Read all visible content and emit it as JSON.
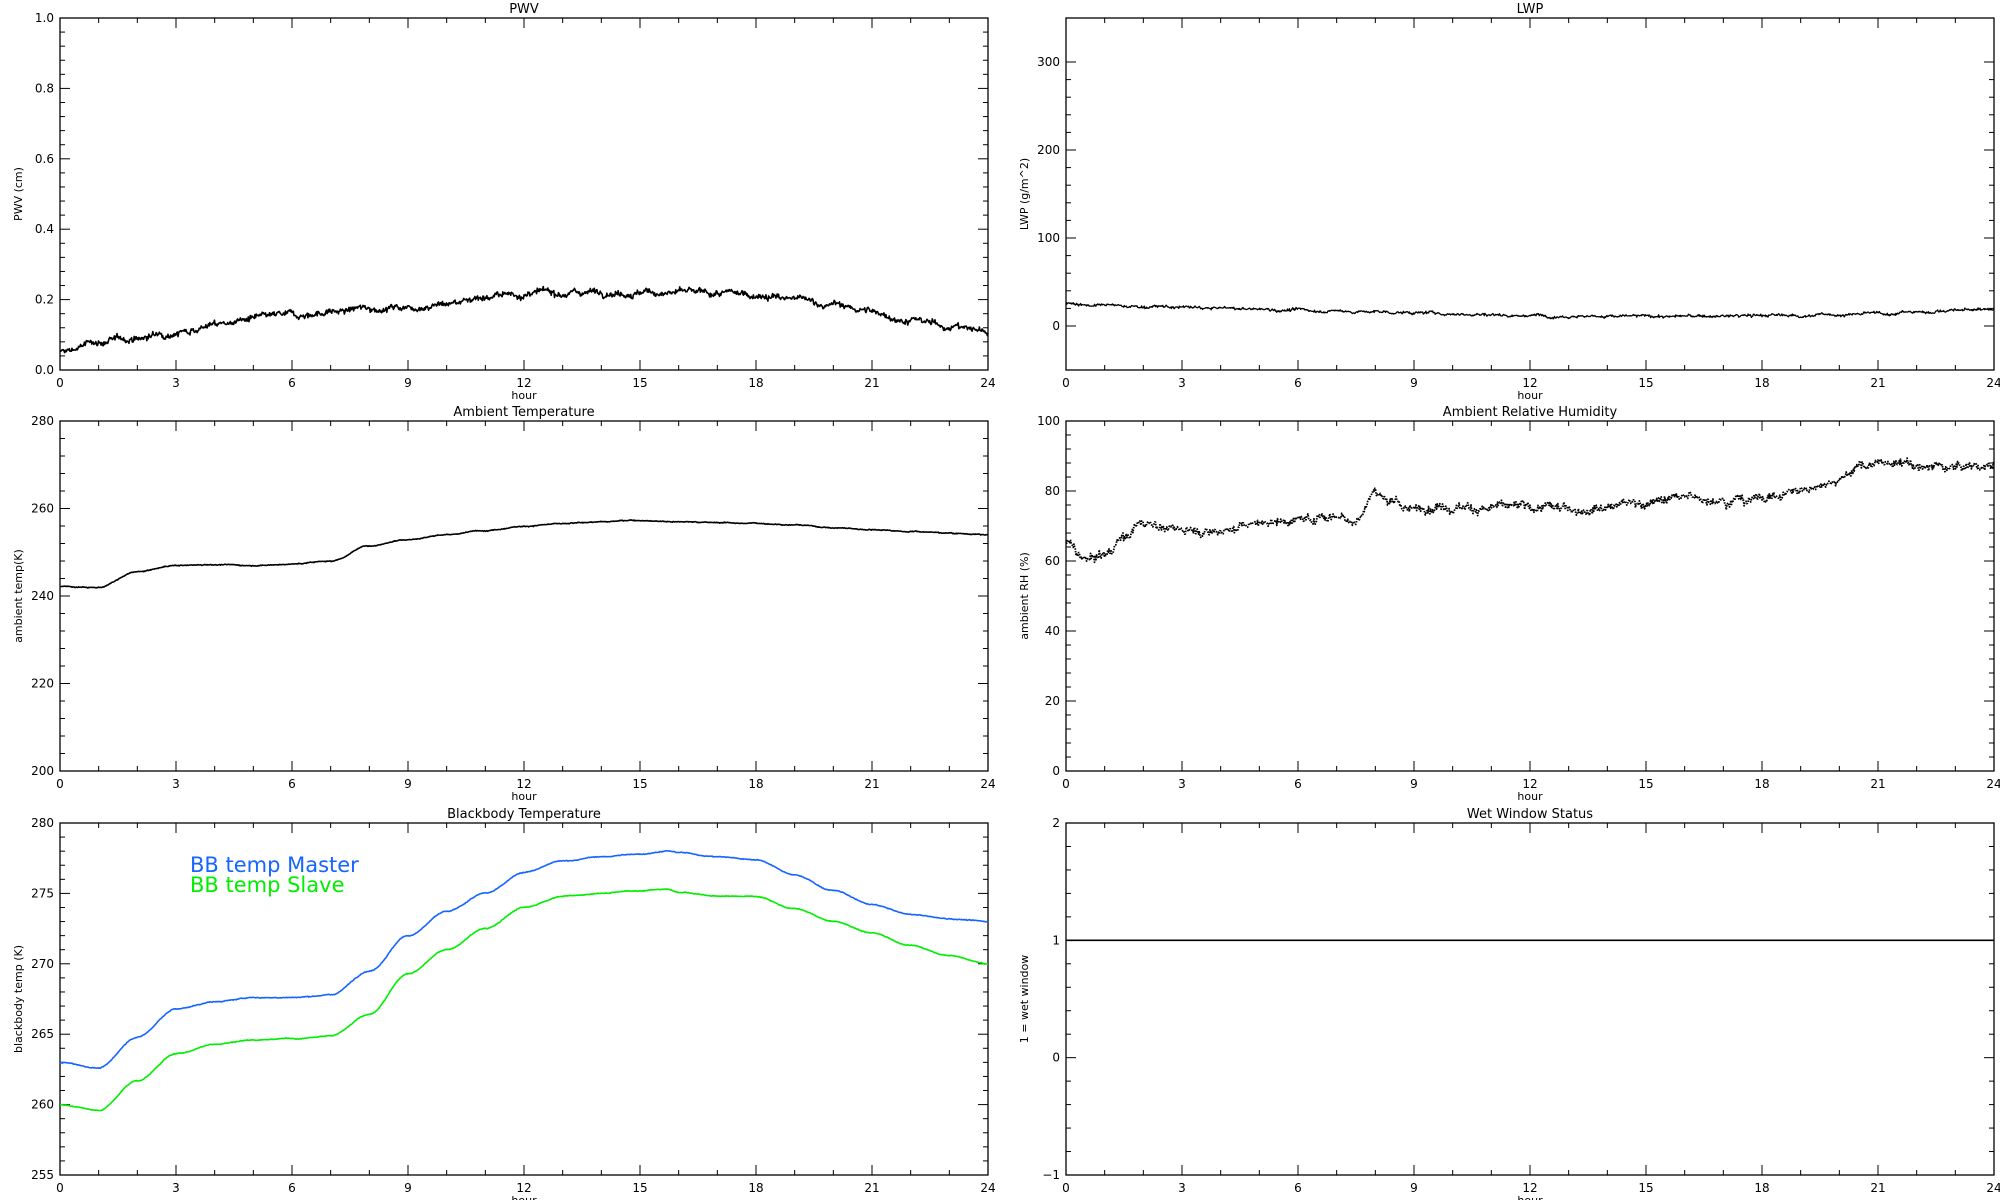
{
  "chart_data": [
    {
      "type": "line",
      "title": "PWV",
      "xlabel": "hour",
      "ylabel": "PWV (cm)",
      "xlim": [
        0,
        24
      ],
      "ylim": [
        0.0,
        1.0
      ],
      "xticks": [
        0,
        3,
        6,
        9,
        12,
        15,
        18,
        21,
        24
      ],
      "xtick_labels": [
        "0",
        "3",
        "6",
        "9",
        "12",
        "15",
        "18",
        "21",
        "24"
      ],
      "yticks": [
        0.0,
        0.2,
        0.4,
        0.6,
        0.8,
        1.0
      ],
      "ytick_labels": [
        "0.0",
        "0.2",
        "0.4",
        "0.6",
        "0.8",
        "1.0"
      ],
      "noise": 0.012,
      "series": [
        {
          "color": "#000000",
          "x": [
            0,
            1,
            2,
            3,
            4,
            5,
            6,
            7,
            8,
            9,
            10,
            11,
            12,
            13,
            14,
            15,
            16,
            17,
            18,
            19,
            20,
            21,
            22,
            23,
            24
          ],
          "values": [
            0.05,
            0.08,
            0.09,
            0.11,
            0.13,
            0.145,
            0.155,
            0.165,
            0.175,
            0.18,
            0.19,
            0.21,
            0.215,
            0.22,
            0.225,
            0.22,
            0.22,
            0.215,
            0.215,
            0.2,
            0.185,
            0.165,
            0.14,
            0.125,
            0.11
          ]
        }
      ]
    },
    {
      "type": "line",
      "title": "LWP",
      "xlabel": "hour",
      "ylabel": "LWP (g/m^2)",
      "xlim": [
        0,
        24
      ],
      "ylim": [
        -50,
        350
      ],
      "xticks": [
        0,
        3,
        6,
        9,
        12,
        15,
        18,
        21,
        24
      ],
      "xtick_labels": [
        "0",
        "3",
        "6",
        "9",
        "12",
        "15",
        "18",
        "21",
        "24"
      ],
      "yticks": [
        0,
        100,
        200,
        300
      ],
      "ytick_labels": [
        "0",
        "100",
        "200",
        "300"
      ],
      "noise": 2.2,
      "series": [
        {
          "color": "#000000",
          "x": [
            0,
            1,
            2,
            3,
            4,
            5,
            6,
            7,
            8,
            9,
            10,
            11,
            12,
            13,
            14,
            15,
            16,
            17,
            18,
            19,
            20,
            21,
            22,
            23,
            24
          ],
          "values": [
            26,
            23,
            22,
            21,
            20,
            19,
            18,
            17,
            16,
            15,
            14,
            13,
            12,
            12,
            11,
            11,
            11,
            11,
            12,
            12,
            13,
            14,
            16,
            18,
            19
          ]
        }
      ]
    },
    {
      "type": "line",
      "title": "Ambient Temperature",
      "xlabel": "hour",
      "ylabel": "ambient temp(K)",
      "xlim": [
        0,
        24
      ],
      "ylim": [
        200,
        280
      ],
      "xticks": [
        0,
        3,
        6,
        9,
        12,
        15,
        18,
        21,
        24
      ],
      "xtick_labels": [
        "0",
        "3",
        "6",
        "9",
        "12",
        "15",
        "18",
        "21",
        "24"
      ],
      "yticks": [
        200,
        220,
        240,
        260,
        280
      ],
      "ytick_labels": [
        "200",
        "220",
        "240",
        "260",
        "280"
      ],
      "noise": 0.15,
      "series": [
        {
          "color": "#000000",
          "x": [
            0,
            1,
            2,
            3,
            4,
            5,
            6,
            7,
            8,
            9,
            10,
            11,
            12,
            13,
            14,
            15,
            16,
            17,
            18,
            19,
            20,
            21,
            22,
            23,
            24
          ],
          "values": [
            242.2,
            242,
            245.5,
            247,
            247.2,
            247,
            247.3,
            248,
            251.5,
            253,
            254,
            255,
            256,
            256.5,
            257,
            257.3,
            257,
            256.8,
            256.6,
            256.3,
            255.6,
            255.2,
            254.8,
            254.4,
            254
          ]
        }
      ]
    },
    {
      "type": "line",
      "title": "Ambient Relative Humidity",
      "xlabel": "hour",
      "ylabel": "ambient RH (%)",
      "xlim": [
        0,
        24
      ],
      "ylim": [
        0,
        100
      ],
      "xticks": [
        0,
        3,
        6,
        9,
        12,
        15,
        18,
        21,
        24
      ],
      "xtick_labels": [
        "0",
        "3",
        "6",
        "9",
        "12",
        "15",
        "18",
        "21",
        "24"
      ],
      "yticks": [
        0,
        20,
        40,
        60,
        80,
        100
      ],
      "ytick_labels": [
        "0",
        "20",
        "40",
        "60",
        "80",
        "100"
      ],
      "noise": 1.6,
      "dotted": true,
      "series": [
        {
          "color": "#000000",
          "x": [
            0,
            0.5,
            1,
            1.5,
            2,
            3,
            4,
            5,
            6,
            7,
            7.5,
            8,
            8.5,
            9,
            10,
            11,
            12,
            13,
            14,
            15,
            16,
            17,
            18,
            19,
            20,
            20.5,
            21,
            22,
            23,
            24
          ],
          "values": [
            65,
            60,
            62,
            67,
            71,
            69,
            69,
            71,
            72,
            73,
            72,
            80,
            76,
            75,
            76,
            75,
            75,
            75,
            76,
            77,
            78,
            78,
            78,
            80,
            84,
            87,
            88,
            87,
            87,
            87
          ]
        }
      ]
    },
    {
      "type": "line",
      "title": "Blackbody Temperature",
      "xlabel": "hour",
      "ylabel": "blackbody temp (K)",
      "xlim": [
        0,
        24
      ],
      "ylim": [
        255,
        280
      ],
      "xticks": [
        0,
        3,
        6,
        9,
        12,
        15,
        18,
        21,
        24
      ],
      "xtick_labels": [
        "0",
        "3",
        "6",
        "9",
        "12",
        "15",
        "18",
        "21",
        "24"
      ],
      "yticks": [
        255,
        260,
        265,
        270,
        275,
        280
      ],
      "ytick_labels": [
        "255",
        "260",
        "265",
        "270",
        "275",
        "280"
      ],
      "noise": 0.04,
      "legend": {
        "placement": "upper-left"
      },
      "series": [
        {
          "name": "BB temp Master",
          "color": "#1565ff",
          "x": [
            0,
            1,
            2,
            3,
            4,
            5,
            6,
            7,
            8,
            9,
            10,
            11,
            12,
            13,
            14,
            15,
            15.7,
            16,
            17,
            18,
            19,
            20,
            21,
            22,
            23,
            24
          ],
          "values": [
            263,
            262.6,
            264.8,
            266.8,
            267.3,
            267.6,
            267.6,
            267.8,
            269.5,
            272,
            273.7,
            275,
            276.5,
            277.3,
            277.6,
            277.8,
            278,
            277.9,
            277.6,
            277.4,
            276.3,
            275.2,
            274.2,
            273.5,
            273.2,
            273
          ]
        },
        {
          "name": "BB temp Slave",
          "color": "#00ee00",
          "x": [
            0,
            1,
            2,
            3,
            4,
            5,
            6,
            7,
            8,
            9,
            10,
            11,
            12,
            13,
            14,
            15,
            15.7,
            16,
            17,
            18,
            19,
            20,
            21,
            22,
            23,
            24
          ],
          "values": [
            260,
            259.6,
            261.7,
            263.6,
            264.3,
            264.6,
            264.7,
            264.9,
            266.4,
            269.3,
            271,
            272.5,
            274,
            274.8,
            275,
            275.2,
            275.3,
            275.1,
            274.8,
            274.8,
            273.9,
            273,
            272.2,
            271.3,
            270.6,
            270
          ]
        }
      ]
    },
    {
      "type": "line",
      "title": "Wet Window Status",
      "xlabel": "hour",
      "ylabel": "1 = wet window",
      "xlim": [
        0,
        24
      ],
      "ylim": [
        -1,
        2
      ],
      "xticks": [
        0,
        3,
        6,
        9,
        12,
        15,
        18,
        21,
        24
      ],
      "xtick_labels": [
        "0",
        "3",
        "6",
        "9",
        "12",
        "15",
        "18",
        "21",
        "24"
      ],
      "yticks": [
        -1,
        0,
        1,
        2
      ],
      "ytick_labels": [
        "−1",
        "0",
        "1",
        "2"
      ],
      "noise": 0,
      "series": [
        {
          "color": "#000000",
          "x": [
            0,
            24
          ],
          "values": [
            1,
            1
          ]
        }
      ]
    }
  ]
}
